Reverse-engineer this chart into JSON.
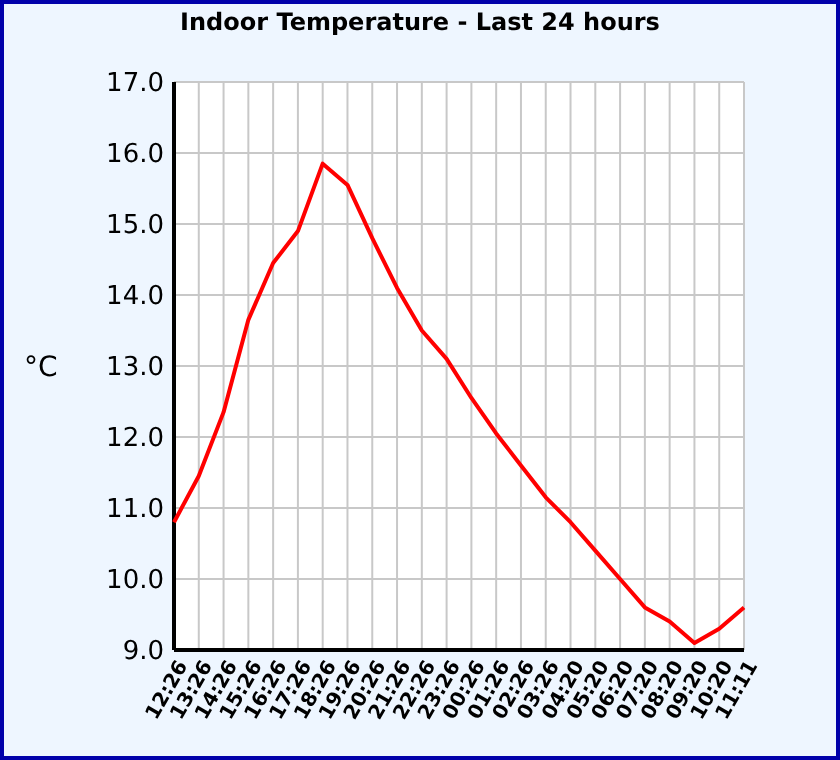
{
  "chart_data": {
    "type": "line",
    "title": "Indoor Temperature - Last 24 hours",
    "ylabel": "°C",
    "categories": [
      "12:26",
      "13:26",
      "14:26",
      "15:26",
      "16:26",
      "17:26",
      "18:26",
      "19:26",
      "20:26",
      "21:26",
      "22:26",
      "23:26",
      "00:26",
      "01:26",
      "02:26",
      "03:26",
      "04:20",
      "05:20",
      "06:20",
      "07:20",
      "08:20",
      "09:20",
      "10:20",
      "11:11"
    ],
    "series": [
      {
        "color": "#ff0000",
        "values": [
          10.8,
          11.45,
          12.35,
          13.65,
          14.45,
          14.9,
          15.85,
          15.55,
          14.8,
          14.1,
          13.5,
          13.1,
          12.55,
          12.05,
          11.6,
          11.15,
          10.8,
          10.4,
          10.0,
          9.6,
          9.4,
          9.1,
          9.3,
          9.6
        ]
      }
    ],
    "ylim": [
      9,
      17
    ],
    "yticks": [
      {
        "value": 9,
        "label": "9.0"
      },
      {
        "value": 10,
        "label": "10.0"
      },
      {
        "value": 11,
        "label": "11.0"
      },
      {
        "value": 12,
        "label": "12.0"
      },
      {
        "value": 13,
        "label": "13.0"
      },
      {
        "value": 14,
        "label": "14.0"
      },
      {
        "value": 15,
        "label": "15.0"
      },
      {
        "value": 16,
        "label": "16.0"
      },
      {
        "value": 17,
        "label": "17.0"
      }
    ],
    "grid": true,
    "marker": "none",
    "line_style": "solid"
  }
}
